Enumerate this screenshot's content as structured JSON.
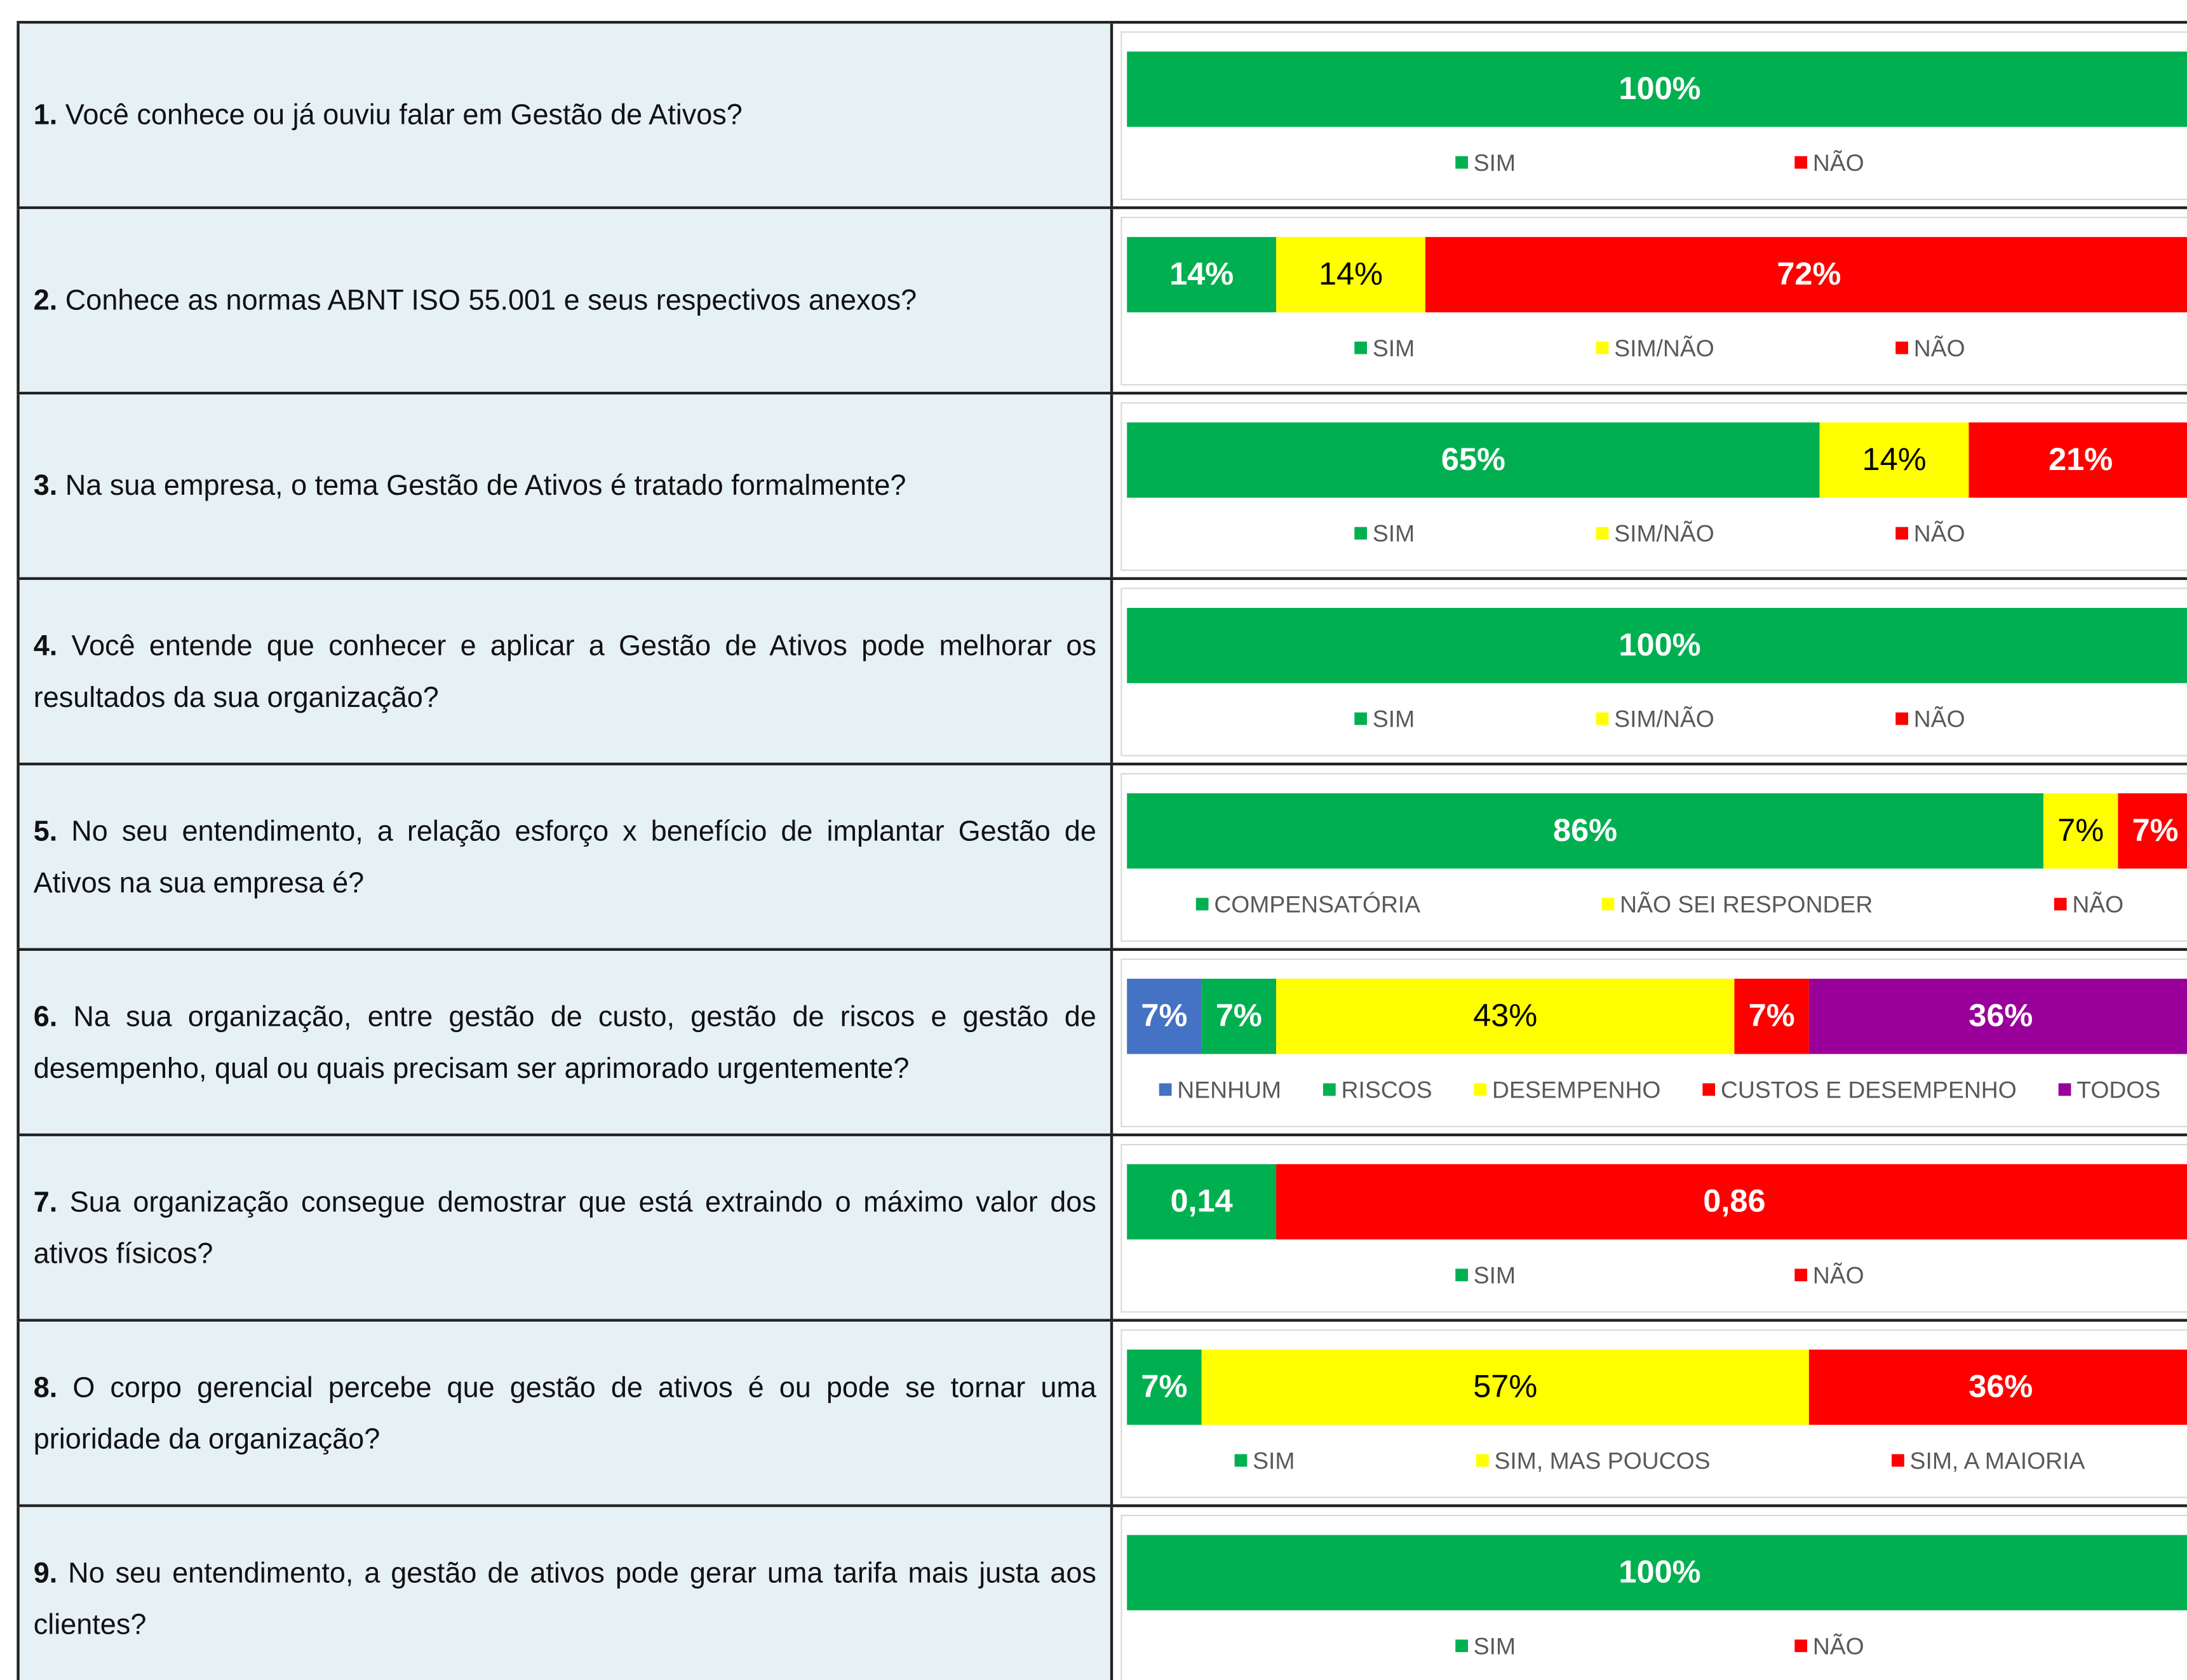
{
  "rows": [
    {
      "number": "1.",
      "question": "Você conhece ou já ouviu falar em Gestão de Ativos?",
      "chart": {
        "type": "bar",
        "series": [
          {
            "name": "SIM",
            "color": "#00b050",
            "values": [
              100
            ],
            "value_labels": [
              "100%"
            ]
          },
          {
            "name": "NÃO",
            "color": "#ff0000",
            "values": [
              0
            ]
          }
        ]
      }
    },
    {
      "number": "2.",
      "question": "Conhece as normas ABNT ISO 55.001 e seus respectivos anexos?",
      "chart": {
        "type": "bar",
        "series": [
          {
            "name": "SIM",
            "color": "#00b050",
            "values": [
              14
            ],
            "value_labels": [
              "14%"
            ]
          },
          {
            "name": "SIM/NÃO",
            "color": "#ffff00",
            "values": [
              14
            ],
            "value_labels": [
              "14%"
            ]
          },
          {
            "name": "NÃO",
            "color": "#ff0000",
            "values": [
              72
            ],
            "value_labels": [
              "72%"
            ]
          }
        ]
      }
    },
    {
      "number": "3.",
      "question": "Na sua empresa, o tema Gestão de Ativos é tratado formalmente?",
      "chart": {
        "type": "bar",
        "series": [
          {
            "name": "SIM",
            "color": "#00b050",
            "values": [
              65
            ],
            "value_labels": [
              "65%"
            ]
          },
          {
            "name": "SIM/NÃO",
            "color": "#ffff00",
            "values": [
              14
            ],
            "value_labels": [
              "14%"
            ]
          },
          {
            "name": "NÃO",
            "color": "#ff0000",
            "values": [
              21
            ],
            "value_labels": [
              "21%"
            ]
          }
        ]
      }
    },
    {
      "number": "4.",
      "question": "Você entende que conhecer e aplicar a Gestão de Ativos pode melhorar os resultados da sua organização?",
      "chart": {
        "type": "bar",
        "series": [
          {
            "name": "SIM",
            "color": "#00b050",
            "values": [
              100
            ],
            "value_labels": [
              "100%"
            ]
          },
          {
            "name": "SIM/NÃO",
            "color": "#ffff00",
            "values": [
              0
            ]
          },
          {
            "name": "NÃO",
            "color": "#ff0000",
            "values": [
              0
            ]
          }
        ]
      }
    },
    {
      "number": "5.",
      "question": "No seu entendimento, a relação esforço x benefício de implantar Gestão de Ativos na sua empresa é?",
      "chart": {
        "type": "bar",
        "series": [
          {
            "name": "COMPENSATÓRIA",
            "color": "#00b050",
            "values": [
              86
            ],
            "value_labels": [
              "86%"
            ]
          },
          {
            "name": "NÃO SEI RESPONDER",
            "color": "#ffff00",
            "values": [
              7
            ],
            "value_labels": [
              "7%"
            ]
          },
          {
            "name": "NÃO",
            "color": "#ff0000",
            "values": [
              7
            ],
            "value_labels": [
              "7%"
            ]
          }
        ]
      }
    },
    {
      "number": "6.",
      "question": "Na sua organização, entre gestão de custo, gestão de riscos e gestão de desempenho, qual ou quais precisam ser aprimorado urgentemente?",
      "chart": {
        "type": "bar",
        "series": [
          {
            "name": "NENHUM",
            "color": "#4472c4",
            "values": [
              7
            ],
            "value_labels": [
              "7%"
            ]
          },
          {
            "name": "RISCOS",
            "color": "#00b050",
            "values": [
              7
            ],
            "value_labels": [
              "7%"
            ]
          },
          {
            "name": "DESEMPENHO",
            "color": "#ffff00",
            "values": [
              43
            ],
            "value_labels": [
              "43%"
            ]
          },
          {
            "name": "CUSTOS E DESEMPENHO",
            "color": "#ff0000",
            "values": [
              7
            ],
            "value_labels": [
              "7%"
            ]
          },
          {
            "name": "TODOS",
            "color": "#990099",
            "values": [
              36
            ],
            "value_labels": [
              "36%"
            ]
          }
        ]
      }
    },
    {
      "number": "7.",
      "question": "Sua organização consegue demostrar que está extraindo o máximo valor dos ativos físicos?",
      "chart": {
        "type": "bar",
        "series": [
          {
            "name": "SIM",
            "color": "#00b050",
            "values": [
              0.14
            ],
            "value_labels": [
              "0,14"
            ]
          },
          {
            "name": "NÃO",
            "color": "#ff0000",
            "values": [
              0.86
            ],
            "value_labels": [
              "0,86"
            ]
          }
        ]
      }
    },
    {
      "number": "8.",
      "question": "O corpo gerencial percebe que gestão de ativos é ou pode se tornar uma prioridade da organização?",
      "chart": {
        "type": "bar",
        "series": [
          {
            "name": "SIM",
            "color": "#00b050",
            "values": [
              7
            ],
            "value_labels": [
              "7%"
            ]
          },
          {
            "name": "SIM, MAS POUCOS",
            "color": "#ffff00",
            "values": [
              57
            ],
            "value_labels": [
              "57%"
            ]
          },
          {
            "name": "SIM, A MAIORIA",
            "color": "#ff0000",
            "values": [
              36
            ],
            "value_labels": [
              "36%"
            ]
          }
        ]
      }
    },
    {
      "number": "9.",
      "question": "No seu entendimento, a gestão de ativos pode gerar uma tarifa mais justa aos clientes?",
      "chart": {
        "type": "bar",
        "series": [
          {
            "name": "SIM",
            "color": "#00b050",
            "values": [
              100
            ],
            "value_labels": [
              "100%"
            ]
          },
          {
            "name": "NÃO",
            "color": "#ff0000",
            "values": [
              0
            ]
          }
        ]
      }
    }
  ]
}
